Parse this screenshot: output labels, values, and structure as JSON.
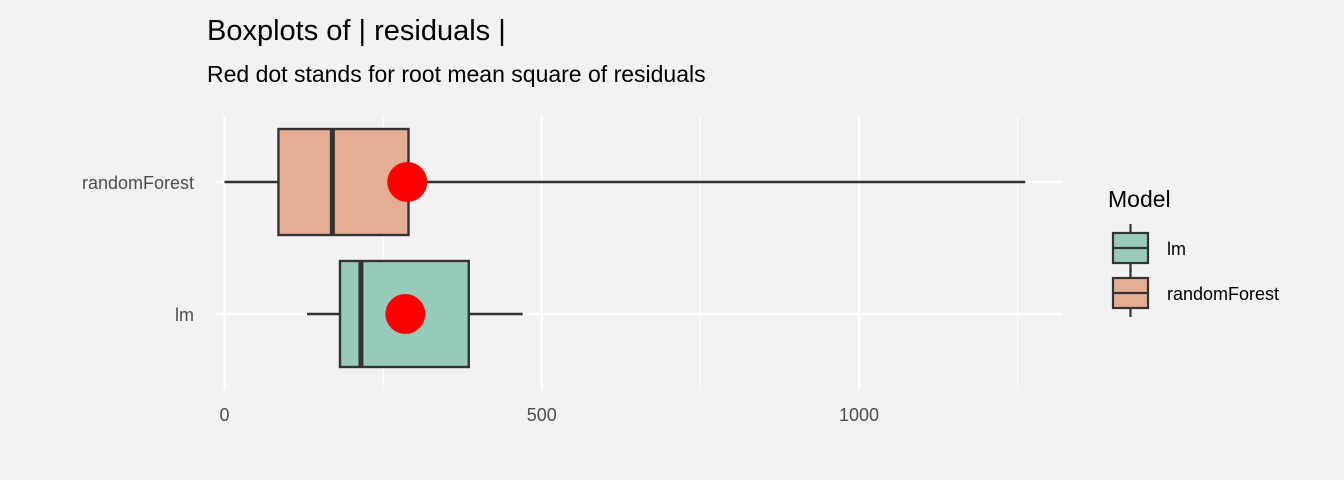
{
  "chart_data": {
    "type": "boxplot",
    "title": "Boxplots of | residuals |",
    "subtitle": "Red dot stands for root mean square of residuals",
    "xlabel": "",
    "ylabel": "",
    "orientation": "horizontal",
    "xlim": [
      -15,
      1320
    ],
    "x_ticks": [
      0,
      500,
      1000
    ],
    "x_tick_labels": [
      "0",
      "500",
      "1000"
    ],
    "x_minor_ticks": [
      250,
      750,
      1250
    ],
    "grid": true,
    "categories": [
      "randomForest",
      "lm"
    ],
    "series": [
      {
        "name": "randomForest",
        "min": 0,
        "q1": 85,
        "median": 170,
        "q3": 290,
        "max": 1262,
        "rms": 288,
        "color": "#e5ad92"
      },
      {
        "name": "lm",
        "min": 130,
        "q1": 182,
        "median": 215,
        "q3": 385,
        "max": 470,
        "rms": 285,
        "color": "#98cbb9"
      }
    ],
    "rms_color": "#ff0000",
    "legend": {
      "title": "Model",
      "position": "right",
      "entries": [
        {
          "label": "lm",
          "color": "#98cbb9"
        },
        {
          "label": "randomForest",
          "color": "#e5ad92"
        }
      ]
    }
  }
}
